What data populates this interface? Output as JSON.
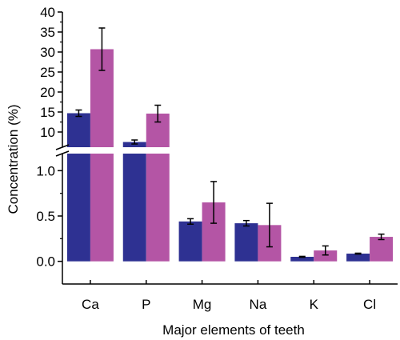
{
  "chart_data": {
    "type": "bar",
    "title": "",
    "xlabel": "Major elements of teeth",
    "ylabel": "Concentration (%)",
    "categories": [
      "Ca",
      "P",
      "Mg",
      "Na",
      "K",
      "Cl"
    ],
    "series": [
      {
        "color": "#2e3192",
        "values": [
          14.7,
          7.5,
          0.44,
          0.42,
          0.05,
          0.085
        ],
        "errors": [
          0.8,
          0.5,
          0.03,
          0.03,
          0.005,
          0.005
        ]
      },
      {
        "color": "#b455a5",
        "values": [
          30.7,
          14.6,
          0.65,
          0.4,
          0.12,
          0.27
        ],
        "errors": [
          5.3,
          2.1,
          0.23,
          0.24,
          0.05,
          0.03
        ]
      }
    ],
    "y_axis_break": true,
    "y_lower_range": [
      -0.25,
      1.25
    ],
    "y_upper_range": [
      7,
      40
    ],
    "y_lower_ticks": [
      0.0,
      0.5,
      1.0
    ],
    "y_lower_tick_labels": [
      "0.0",
      "0.5",
      "1.0"
    ],
    "y_upper_ticks": [
      10,
      15,
      20,
      25,
      30,
      35,
      40
    ],
    "y_upper_tick_labels": [
      "10",
      "15",
      "20",
      "25",
      "30",
      "35",
      "40"
    ],
    "grid": false,
    "legend": "none"
  }
}
